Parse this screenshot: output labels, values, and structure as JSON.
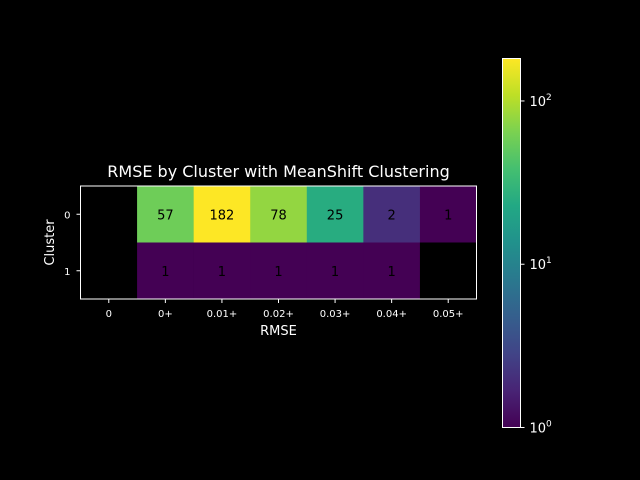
{
  "chart_data": {
    "type": "heatmap",
    "title": "RMSE by Cluster with MeanShift Clustering",
    "xlabel": "RMSE",
    "ylabel": "Cluster",
    "x_categories": [
      "0",
      "0+",
      "0.01+",
      "0.02+",
      "0.03+",
      "0.04+",
      "0.05+"
    ],
    "y_categories": [
      "0",
      "1"
    ],
    "values": [
      [
        null,
        57,
        182,
        78,
        25,
        2,
        1
      ],
      [
        null,
        1,
        1,
        1,
        1,
        1,
        null
      ]
    ],
    "cell_labels": [
      [
        "",
        "57",
        "182",
        "78",
        "25",
        "2",
        "1"
      ],
      [
        "",
        "1",
        "1",
        "1",
        "1",
        "1",
        ""
      ]
    ],
    "colorscale": "viridis",
    "color_scale_type": "log",
    "color_range": [
      1,
      182
    ],
    "colorbar": {
      "ticks": [
        {
          "value": 1,
          "base": "10",
          "exp": "0"
        },
        {
          "value": 10,
          "base": "10",
          "exp": "1"
        },
        {
          "value": 100,
          "base": "10",
          "exp": "2"
        }
      ]
    },
    "grid": false,
    "background": "#000000",
    "missing_color": "#000000"
  }
}
